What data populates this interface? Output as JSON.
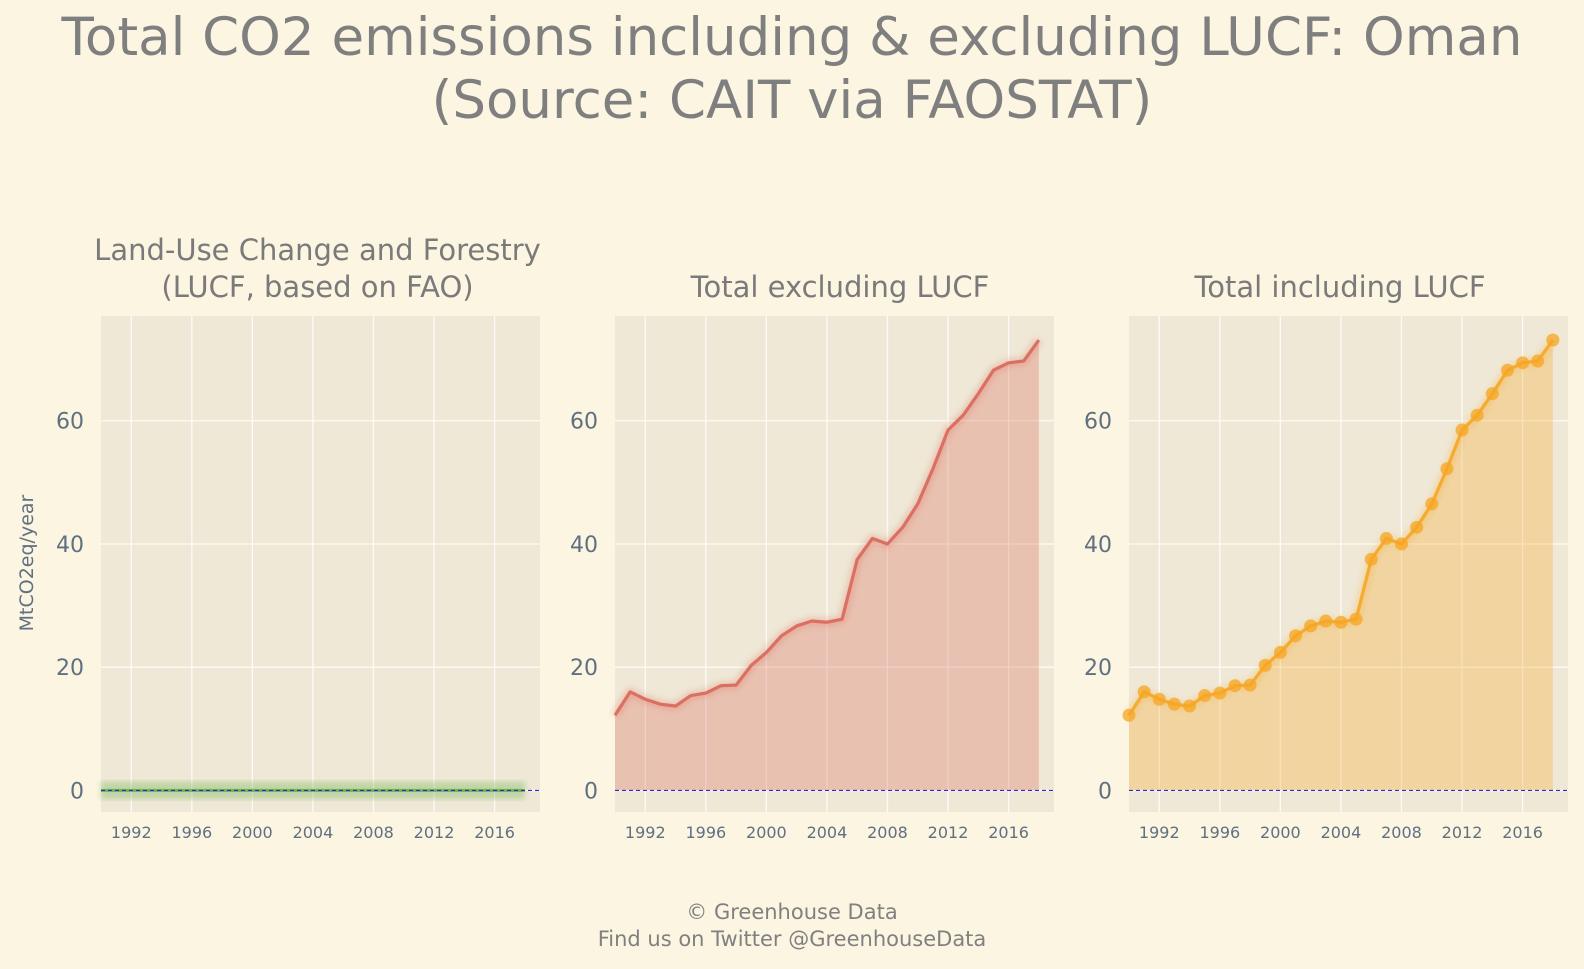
{
  "figure": {
    "title_line1": "Total CO2 emissions including & excluding LUCF: Oman",
    "title_line2": "(Source: CAIT via FAOSTAT)",
    "credit_line1": "© Greenhouse Data",
    "credit_line2": "Find us on Twitter @GreenhouseData"
  },
  "chart_data": [
    {
      "type": "area",
      "title_line1": "Land-Use Change and Forestry",
      "title_line2": "(LUCF, based on FAO)",
      "ylabel": "MtCO2eq/year",
      "color": "#6ab04c",
      "markers": false,
      "x": [
        1990,
        1991,
        1992,
        1993,
        1994,
        1995,
        1996,
        1997,
        1998,
        1999,
        2000,
        2001,
        2002,
        2003,
        2004,
        2005,
        2006,
        2007,
        2008,
        2009,
        2010,
        2011,
        2012,
        2013,
        2014,
        2015,
        2016,
        2017,
        2018
      ],
      "values": [
        0,
        0,
        0,
        0,
        0,
        0,
        0,
        0,
        0,
        0,
        0,
        0,
        0,
        0,
        0,
        0,
        0,
        0,
        0,
        0,
        0,
        0,
        0,
        0,
        0,
        0,
        0,
        0,
        0
      ],
      "xticks": [
        1992,
        1996,
        2000,
        2004,
        2008,
        2012,
        2016
      ],
      "yticks": [
        0,
        20,
        40,
        60
      ],
      "xlim": [
        1990,
        2019
      ],
      "ylim": [
        -3.5,
        77
      ],
      "zero_line": true,
      "grid": true
    },
    {
      "type": "area",
      "title_line1": "Total excluding LUCF",
      "title_line2": "",
      "ylabel": "",
      "color": "#d9675a",
      "markers": false,
      "x": [
        1990,
        1991,
        1992,
        1993,
        1994,
        1995,
        1996,
        1997,
        1998,
        1999,
        2000,
        2001,
        2002,
        2003,
        2004,
        2005,
        2006,
        2007,
        2008,
        2009,
        2010,
        2011,
        2012,
        2013,
        2014,
        2015,
        2016,
        2017,
        2018
      ],
      "values": [
        12.2,
        16.0,
        14.8,
        14.0,
        13.7,
        15.4,
        15.8,
        17.0,
        17.1,
        20.3,
        22.4,
        25.1,
        26.7,
        27.5,
        27.3,
        27.8,
        37.5,
        40.9,
        40.0,
        42.7,
        46.5,
        52.2,
        58.5,
        60.9,
        64.4,
        68.2,
        69.4,
        69.7,
        73.1
      ],
      "xticks": [
        1992,
        1996,
        2000,
        2004,
        2008,
        2012,
        2016
      ],
      "yticks": [
        0,
        20,
        40,
        60
      ],
      "xlim": [
        1990,
        2019
      ],
      "ylim": [
        -3.5,
        77
      ],
      "zero_line": true,
      "grid": true
    },
    {
      "type": "area",
      "title_line1": "Total including LUCF",
      "title_line2": "",
      "ylabel": "",
      "color": "#f5a623",
      "markers": true,
      "x": [
        1990,
        1991,
        1992,
        1993,
        1994,
        1995,
        1996,
        1997,
        1998,
        1999,
        2000,
        2001,
        2002,
        2003,
        2004,
        2005,
        2006,
        2007,
        2008,
        2009,
        2010,
        2011,
        2012,
        2013,
        2014,
        2015,
        2016,
        2017,
        2018
      ],
      "values": [
        12.2,
        16.0,
        14.8,
        14.0,
        13.7,
        15.4,
        15.8,
        17.0,
        17.1,
        20.3,
        22.4,
        25.1,
        26.7,
        27.5,
        27.3,
        27.8,
        37.5,
        40.9,
        40.0,
        42.7,
        46.5,
        52.2,
        58.5,
        60.9,
        64.4,
        68.2,
        69.4,
        69.7,
        73.1
      ],
      "xticks": [
        1992,
        1996,
        2000,
        2004,
        2008,
        2012,
        2016
      ],
      "yticks": [
        0,
        20,
        40,
        60
      ],
      "xlim": [
        1990,
        2019
      ],
      "ylim": [
        -3.5,
        77
      ],
      "zero_line": true,
      "grid": true
    }
  ]
}
